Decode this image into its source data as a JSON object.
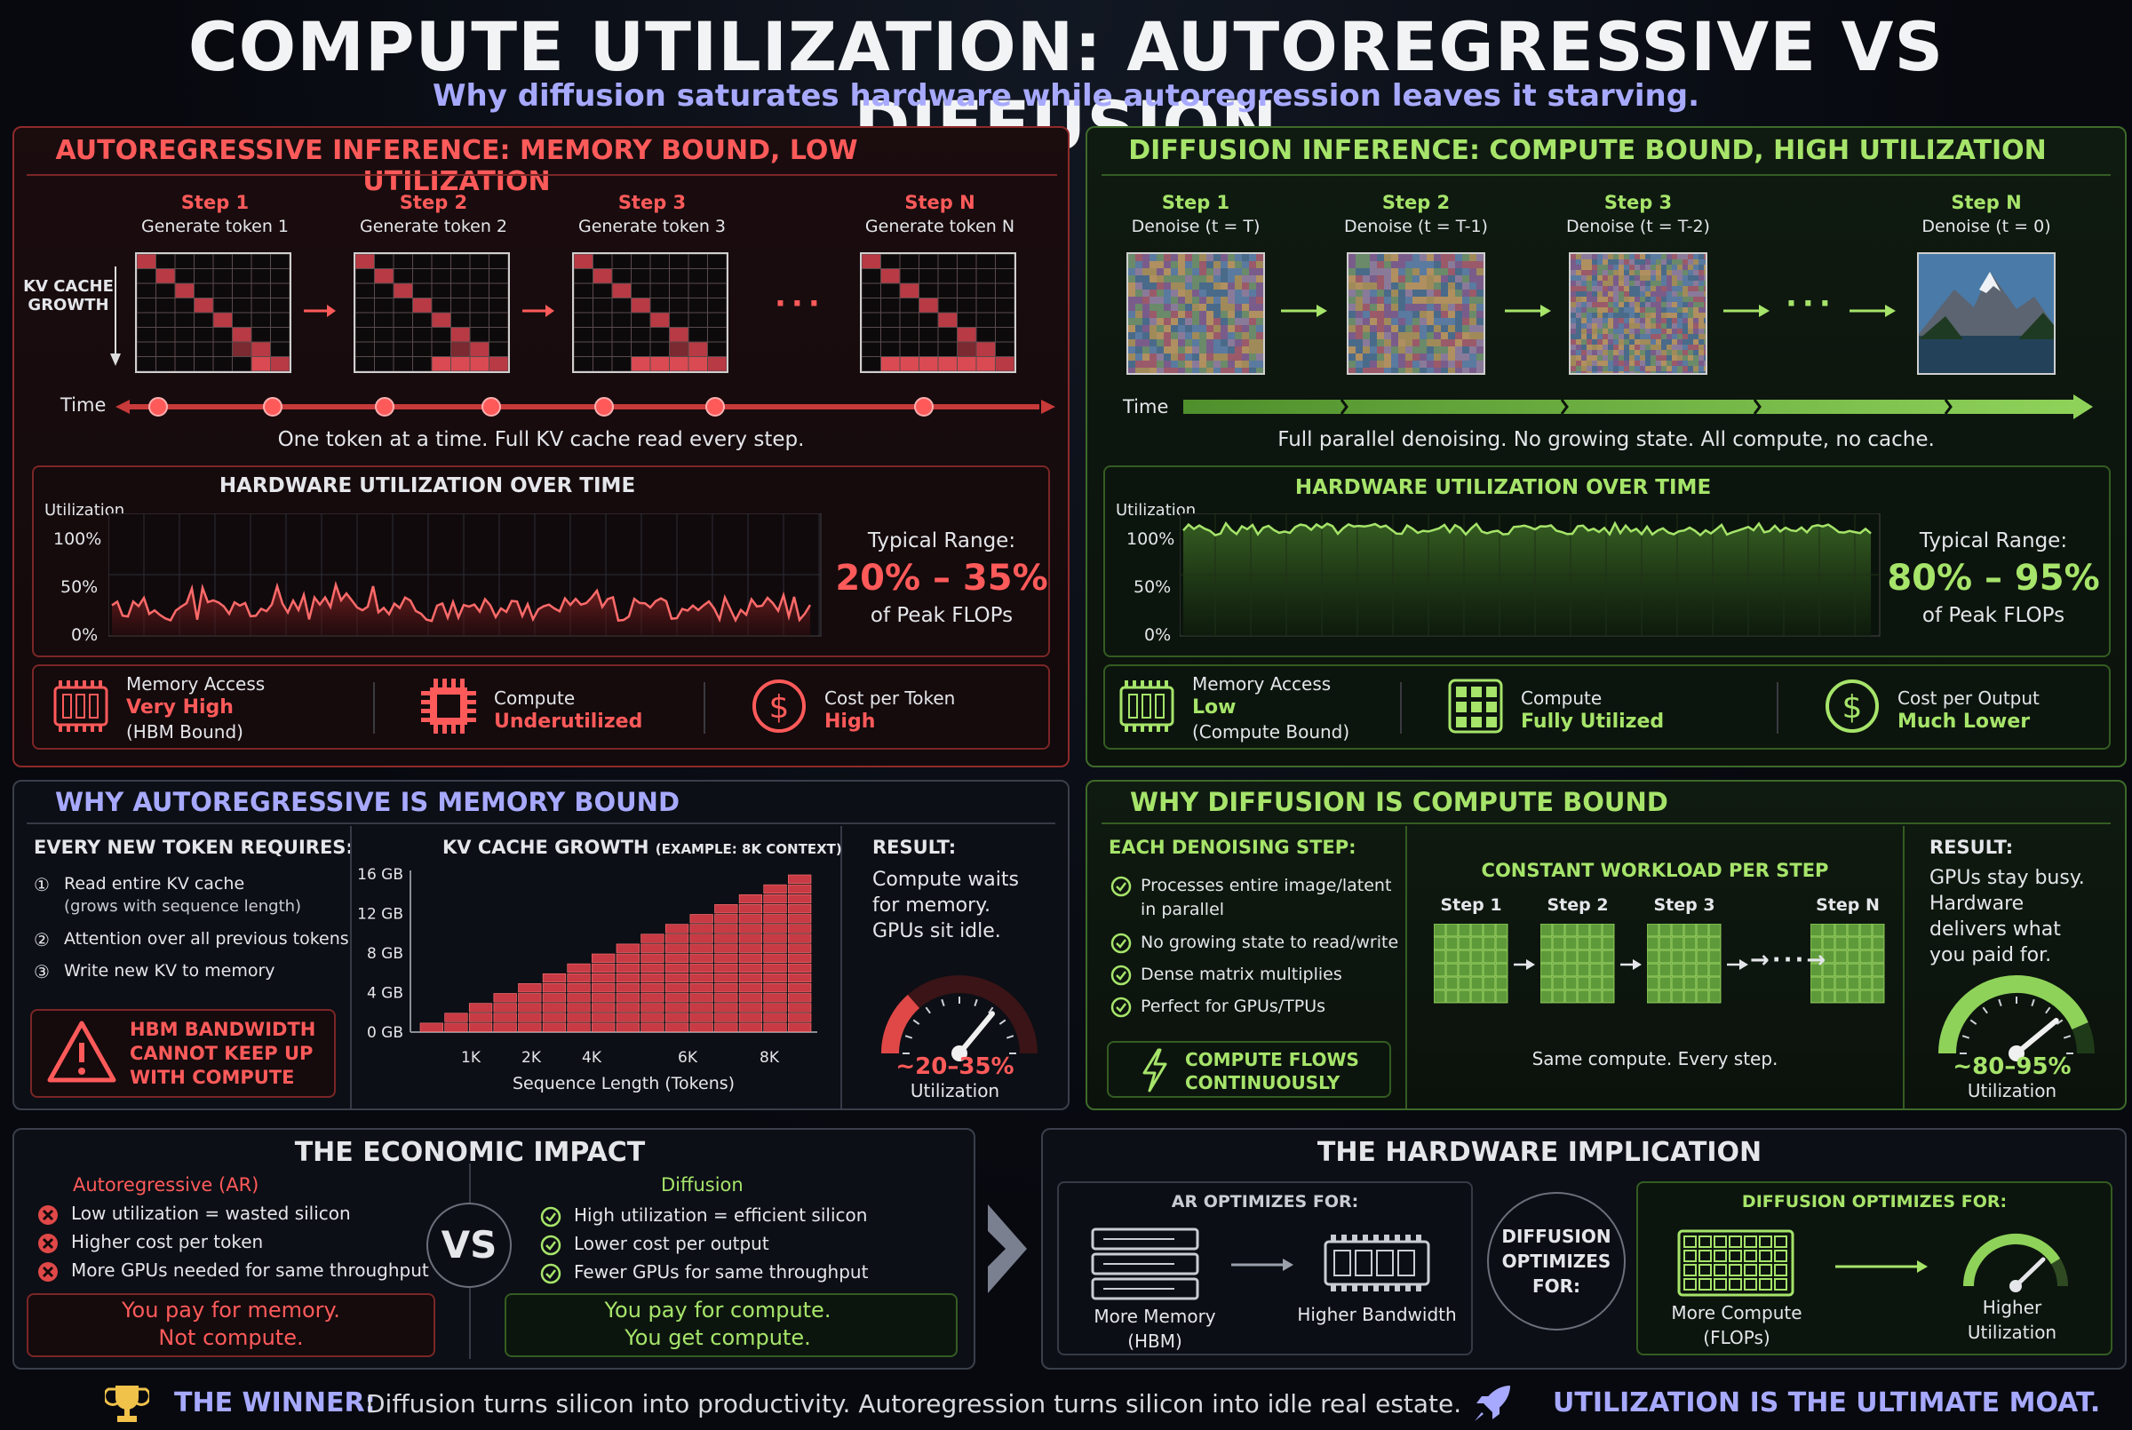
{
  "header": {
    "title": "COMPUTE UTILIZATION: AUTOREGRESSIVE VS DIFFUSION",
    "subtitle": "Why diffusion saturates hardware while autoregression leaves it starving."
  },
  "ar": {
    "title": "AUTOREGRESSIVE INFERENCE: MEMORY BOUND, LOW UTILIZATION",
    "kv_label": "KV CACHE\nGROWTH",
    "steps": [
      {
        "step": "Step 1",
        "desc": "Generate token 1",
        "filled": 2
      },
      {
        "step": "Step 2",
        "desc": "Generate token 2",
        "filled": 4
      },
      {
        "step": "Step 3",
        "desc": "Generate token 3",
        "filled": 5
      },
      {
        "step": "Step N",
        "desc": "Generate token N",
        "filled": 7
      }
    ],
    "time_label": "Time",
    "caption": "One token at a time. Full KV cache read every step.",
    "util_title": "HARDWARE UTILIZATION OVER TIME",
    "util_axis": "Utilization",
    "ticks": [
      "100%",
      "50%",
      "0%"
    ],
    "range_label": "Typical Range:",
    "range_value": "20% – 35%",
    "range_unit": "of Peak FLOPs",
    "stats": [
      {
        "title": "Memory Access",
        "value": "Very High",
        "note": "(HBM Bound)",
        "icon": "memory-chip-icon"
      },
      {
        "title": "Compute",
        "value": "Underutilized",
        "note": "",
        "icon": "processor-icon"
      },
      {
        "title": "Cost per Token",
        "value": "High",
        "note": "",
        "icon": "dollar-icon"
      }
    ]
  },
  "diff": {
    "title": "DIFFUSION INFERENCE: COMPUTE BOUND, HIGH UTILIZATION",
    "steps": [
      {
        "step": "Step 1",
        "desc": "Denoise (t = T)"
      },
      {
        "step": "Step 2",
        "desc": "Denoise (t = T-1)"
      },
      {
        "step": "Step 3",
        "desc": "Denoise (t = T-2)"
      },
      {
        "step": "Step N",
        "desc": "Denoise (t = 0)"
      }
    ],
    "time_label": "Time",
    "caption": "Full parallel denoising. No growing state. All compute, no cache.",
    "util_title": "HARDWARE UTILIZATION OVER TIME",
    "util_axis": "Utilization",
    "ticks": [
      "100%",
      "50%",
      "0%"
    ],
    "range_label": "Typical Range:",
    "range_value": "80% – 95%",
    "range_unit": "of Peak FLOPs",
    "stats": [
      {
        "title": "Memory Access",
        "value": "Low",
        "note": "(Compute Bound)",
        "icon": "memory-chip-icon"
      },
      {
        "title": "Compute",
        "value": "Fully Utilized",
        "note": "",
        "icon": "grid-chip-icon"
      },
      {
        "title": "Cost per Output",
        "value": "Much Lower",
        "note": "",
        "icon": "dollar-icon"
      }
    ]
  },
  "why_ar": {
    "title": "WHY AUTOREGRESSIVE IS MEMORY BOUND",
    "req_title": "EVERY NEW TOKEN REQUIRES:",
    "reqs": [
      {
        "num": "①",
        "text": "Read entire KV cache",
        "note": "(grows with sequence length)"
      },
      {
        "num": "②",
        "text": "Attention over all previous tokens",
        "note": ""
      },
      {
        "num": "③",
        "text": "Write new KV to memory",
        "note": ""
      }
    ],
    "warning": "HBM BANDWIDTH\nCANNOT KEEP UP\nWITH COMPUTE",
    "result_title": "RESULT:",
    "result_text": "Compute waits\nfor memory.\nGPUs sit idle.",
    "gauge_value": "~20–35%",
    "gauge_label": "Utilization",
    "gauge_level": 0.27
  },
  "kv_chart": {
    "title": "KV CACHE GROWTH",
    "note": "(EXAMPLE: 8K CONTEXT)",
    "xlabel": "Sequence Length (Tokens)"
  },
  "chart_data": {
    "type": "bar",
    "title": "KV CACHE GROWTH (EXAMPLE: 8K CONTEXT)",
    "xlabel": "Sequence Length (Tokens)",
    "ylabel": "",
    "y_ticks": [
      "16 GB",
      "12 GB",
      "8 GB",
      "4 GB",
      "0 GB"
    ],
    "x_ticks": [
      "1K",
      "2K",
      "4K",
      "6K",
      "8K"
    ],
    "ylim": [
      0,
      16
    ],
    "x": [
      0.5,
      1,
      1.5,
      2,
      2.5,
      3,
      3.5,
      4,
      4.5,
      5,
      5.5,
      6,
      6.5,
      7,
      7.5,
      8
    ],
    "values": [
      1,
      2,
      3,
      4,
      5,
      6,
      7,
      8,
      9,
      10,
      11,
      12,
      13,
      14,
      15,
      16
    ]
  },
  "why_diff": {
    "title": "WHY DIFFUSION IS COMPUTE BOUND",
    "each_title": "EACH DENOISING STEP:",
    "items": [
      "Processes entire image/latent\nin parallel",
      "No growing state to read/write",
      "Dense matrix multiplies",
      "Perfect for GPUs/TPUs"
    ],
    "flow": "COMPUTE FLOWS\nCONTINUOUSLY",
    "const_title": "CONSTANT WORKLOAD PER STEP",
    "const_steps": [
      "Step 1",
      "Step 2",
      "Step 3",
      "Step N"
    ],
    "const_caption": "Same compute. Every step.",
    "result_title": "RESULT:",
    "result_text": "GPUs stay busy.\nHardware\ndelivers what\nyou paid for.",
    "gauge_value": "~80–95%",
    "gauge_label": "Utilization",
    "gauge_level": 0.87
  },
  "econ": {
    "title": "THE ECONOMIC IMPACT",
    "ar_title": "Autoregressive (AR)",
    "ar_items": [
      "Low utilization = wasted silicon",
      "Higher cost per token",
      "More GPUs needed for same throughput"
    ],
    "ar_footer": "You pay for memory.\nNot compute.",
    "vs": "VS",
    "diff_title": "Diffusion",
    "diff_items": [
      "High utilization = efficient silicon",
      "Lower cost per output",
      "Fewer GPUs for same throughput"
    ],
    "diff_footer": "You pay for compute.\nYou get compute."
  },
  "hw": {
    "title": "THE HARDWARE IMPLICATION",
    "ar_title": "AR OPTIMIZES FOR:",
    "ar_a": "More Memory\n(HBM)",
    "ar_b": "Higher Bandwidth",
    "mid": "DIFFUSION\nOPTIMIZES\nFOR:",
    "diff_title": "DIFFUSION OPTIMIZES FOR:",
    "diff_a": "More Compute\n(FLOPs)",
    "diff_b": "Higher\nUtilization"
  },
  "footer": {
    "winner_label": "THE WINNER:",
    "winner_text": "Diffusion turns silicon into productivity.  Autoregression turns silicon into idle real estate.",
    "moat": "UTILIZATION IS THE ULTIMATE MOAT."
  },
  "colors": {
    "ar": "#ff5a5a",
    "diffusion": "#a6e46a",
    "accent": "#a7a9ff",
    "gold": "#f0c24a"
  }
}
